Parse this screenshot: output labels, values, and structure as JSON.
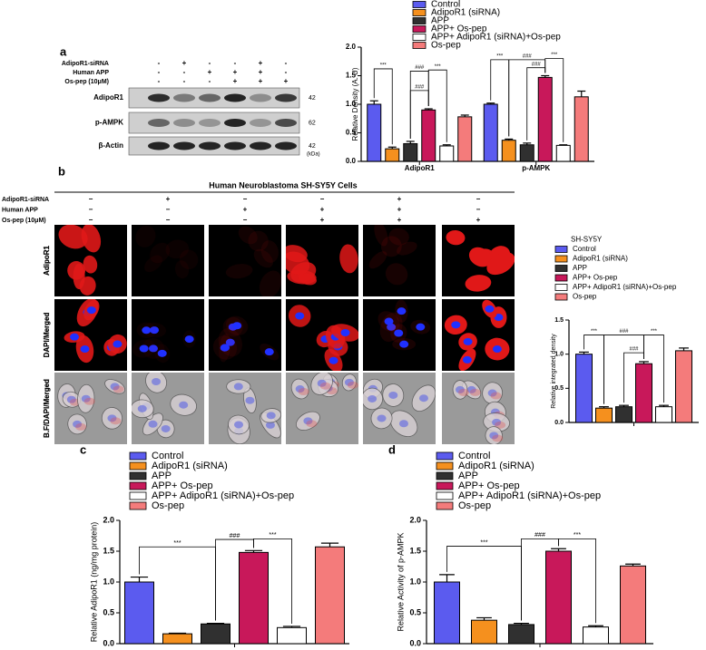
{
  "figure": {
    "panel_labels": [
      "a",
      "b",
      "c",
      "d"
    ],
    "blot": {
      "treatments": [
        "AdipoR1-siRNA",
        "Human APP",
        "Os-pep (10μM)"
      ],
      "signs": [
        [
          "-",
          "+",
          "-",
          "-",
          "+",
          "-"
        ],
        [
          "-",
          "-",
          "+",
          "+",
          "+",
          "-"
        ],
        [
          "-",
          "-",
          "-",
          "+",
          "+",
          "+"
        ]
      ],
      "bands": [
        "AdipoR1",
        "p-AMPK",
        "β-Actin"
      ],
      "sizes": [
        "42",
        "62",
        "42"
      ],
      "unit": "(kDa)"
    },
    "cells": {
      "title": "Human Neuroblastoma SH-SY5Y Cells",
      "treatments": [
        "AdipoR1-siRNA",
        "Human APP",
        "Os-pep (10μM)"
      ],
      "signs": [
        [
          "−",
          "+",
          "−",
          "−",
          "+",
          "−"
        ],
        [
          "−",
          "−",
          "+",
          "+",
          "+",
          "−"
        ],
        [
          "−",
          "−",
          "−",
          "+",
          "+",
          "+"
        ]
      ],
      "rows": [
        "AdipoR1",
        "DAPI/Merged",
        "B.F/DAPI/Merged"
      ]
    }
  },
  "chart_data": [
    {
      "type": "bar",
      "y_label": "Relative Density (A. U)",
      "categories": [
        "AdipoR1",
        "p-AMPK"
      ],
      "series": [
        {
          "name": "Control",
          "color": "#5b5bef",
          "values": [
            1.0,
            1.0
          ],
          "errors": [
            0.06,
            0.02
          ]
        },
        {
          "name": "AdipoR1 (siRNA)",
          "color": "#f5901e",
          "values": [
            0.22,
            0.37
          ],
          "errors": [
            0.03,
            0.02
          ]
        },
        {
          "name": "APP",
          "color": "#303030",
          "values": [
            0.31,
            0.29
          ],
          "errors": [
            0.04,
            0.03
          ]
        },
        {
          "name": "APP+ Os-pep",
          "color": "#c8185a",
          "values": [
            0.9,
            1.47
          ],
          "errors": [
            0.02,
            0.03
          ]
        },
        {
          "name": "APP+ AdipoR1 (siRNA)+Os-pep",
          "color": "#ffffff",
          "values": [
            0.27,
            0.28
          ],
          "errors": [
            0.02,
            0.01
          ]
        },
        {
          "name": "Os-pep",
          "color": "#f47b7b",
          "values": [
            0.78,
            1.13
          ],
          "errors": [
            0.03,
            0.1
          ]
        }
      ],
      "ylim": [
        0,
        2
      ],
      "yticks": [
        {
          "value": 0,
          "label": "0.0"
        },
        0.5,
        {
          "value": 1,
          "label": "1.0"
        },
        1.5,
        {
          "value": 2,
          "label": "2.0"
        }
      ],
      "annotations": [
        "***",
        "###",
        "###",
        "***",
        "***",
        "###",
        "###",
        "***"
      ]
    },
    {
      "type": "bar",
      "legend_title": "SH-SY5Y",
      "y_label": "Relative integrated density",
      "categories": [
        null
      ],
      "series": [
        {
          "name": "Control",
          "color": "#5b5bef",
          "values": [
            1.0
          ],
          "errors": [
            0.03
          ]
        },
        {
          "name": "AdipoR1 (siRNA)",
          "color": "#f5901e",
          "values": [
            0.21
          ],
          "errors": [
            0.02
          ]
        },
        {
          "name": "APP",
          "color": "#303030",
          "values": [
            0.23
          ],
          "errors": [
            0.02
          ]
        },
        {
          "name": "APP+ Os-pep",
          "color": "#c8185a",
          "values": [
            0.86
          ],
          "errors": [
            0.03
          ]
        },
        {
          "name": "APP+ AdipoR1 (siRNA)+Os-pep",
          "color": "#ffffff",
          "values": [
            0.23
          ],
          "errors": [
            0.02
          ]
        },
        {
          "name": "Os-pep",
          "color": "#f47b7b",
          "values": [
            1.05
          ],
          "errors": [
            0.04
          ]
        }
      ],
      "ylim": [
        0,
        1.5
      ],
      "yticks": [
        {
          "value": 0,
          "label": "0.0"
        },
        0.5,
        {
          "value": 1,
          "label": "1.0"
        },
        1.5
      ],
      "annotations": [
        "***",
        "###",
        "###",
        "***"
      ]
    },
    {
      "type": "bar",
      "y_label": "Relative AdipoR1 (ng/mg protein)",
      "categories": [
        null
      ],
      "series": [
        {
          "name": "Control",
          "color": "#5b5bef",
          "values": [
            1.0
          ],
          "errors": [
            0.08
          ]
        },
        {
          "name": "AdipoR1 (siRNA)",
          "color": "#f5901e",
          "values": [
            0.16
          ],
          "errors": [
            0.01
          ]
        },
        {
          "name": "APP",
          "color": "#303030",
          "values": [
            0.32
          ],
          "errors": [
            0.01
          ]
        },
        {
          "name": "APP+ Os-pep",
          "color": "#c8185a",
          "values": [
            1.48
          ],
          "errors": [
            0.03
          ]
        },
        {
          "name": "APP+ AdipoR1 (siRNA)+Os-pep",
          "color": "#ffffff",
          "values": [
            0.26
          ],
          "errors": [
            0.02
          ]
        },
        {
          "name": "Os-pep",
          "color": "#f47b7b",
          "values": [
            1.57
          ],
          "errors": [
            0.06
          ]
        }
      ],
      "ylim": [
        0,
        2
      ],
      "yticks": [
        {
          "value": 0,
          "label": "0.0"
        },
        0.5,
        {
          "value": 1,
          "label": "1.0"
        },
        1.5,
        {
          "value": 2,
          "label": "2.0"
        }
      ],
      "annotations": [
        "***",
        "###",
        "***"
      ]
    },
    {
      "type": "bar",
      "y_label": "Relative Activity of p-AMPK",
      "categories": [
        null
      ],
      "series": [
        {
          "name": "Control",
          "color": "#5b5bef",
          "values": [
            1.0
          ],
          "errors": [
            0.12
          ]
        },
        {
          "name": "AdipoR1 (siRNA)",
          "color": "#f5901e",
          "values": [
            0.38
          ],
          "errors": [
            0.04
          ]
        },
        {
          "name": "APP",
          "color": "#303030",
          "values": [
            0.31
          ],
          "errors": [
            0.02
          ]
        },
        {
          "name": "APP+ Os-pep",
          "color": "#c8185a",
          "values": [
            1.5
          ],
          "errors": [
            0.04
          ]
        },
        {
          "name": "APP+ AdipoR1 (siRNA)+Os-pep",
          "color": "#ffffff",
          "values": [
            0.27
          ],
          "errors": [
            0.02
          ]
        },
        {
          "name": "Os-pep",
          "color": "#f47b7b",
          "values": [
            1.26
          ],
          "errors": [
            0.03
          ]
        }
      ],
      "ylim": [
        0,
        2
      ],
      "yticks": [
        {
          "value": 0,
          "label": "0.0"
        },
        0.5,
        {
          "value": 1,
          "label": "1.0"
        },
        1.5,
        {
          "value": 2,
          "label": "2.0"
        }
      ],
      "annotations": [
        "***",
        "###",
        "***"
      ]
    }
  ]
}
